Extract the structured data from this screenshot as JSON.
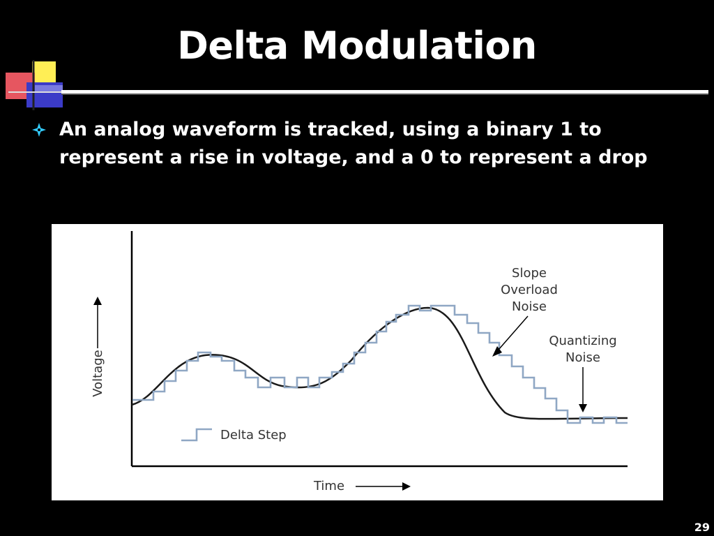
{
  "slide": {
    "title": "Delta Modulation",
    "bullet": "An analog waveform is tracked, using a binary 1 to represent a rise in voltage, and a 0 to represent a drop",
    "page_number": "29",
    "bullet_icon": "diamond-bullet-icon",
    "colors": {
      "background": "#000000",
      "text": "#ffffff",
      "bullet": "#33ccff",
      "step_trace": "#8fa7c4",
      "analog_trace": "#1a1a1a"
    }
  },
  "diagram": {
    "y_label": "Voltage",
    "x_label": "Time",
    "legend_label": "Delta Step",
    "annotations": {
      "slope_overload": [
        "Slope",
        "Overload",
        "Noise"
      ],
      "quantizing": [
        "Quantizing",
        "Noise"
      ]
    }
  }
}
